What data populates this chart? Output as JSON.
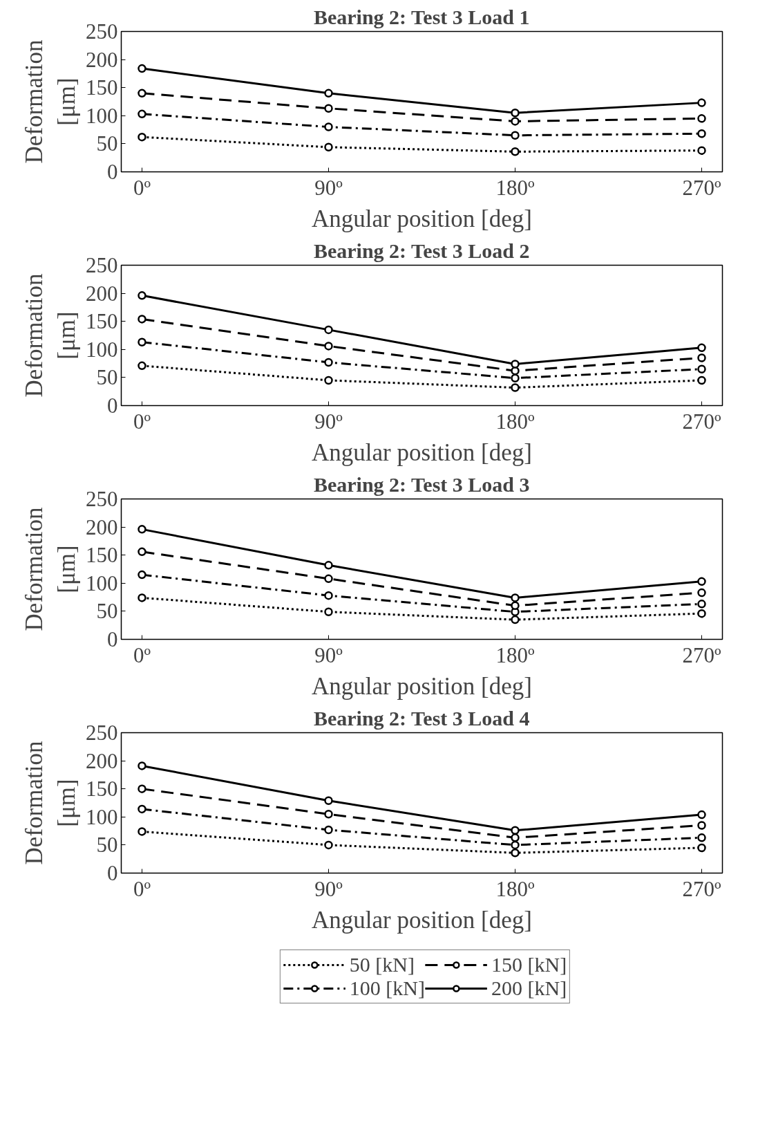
{
  "chart_data": [
    {
      "type": "line",
      "title": "Bearing 2: Test 3 Load 1",
      "xlabel": "Angular position [deg]",
      "ylabel": "Deformation [μm]",
      "x": [
        0,
        90,
        180,
        270
      ],
      "xlim": [
        -10,
        280
      ],
      "ylim": [
        0,
        250
      ],
      "xticks": [
        {
          "value": 0,
          "label": "0º"
        },
        {
          "value": 90,
          "label": "90º"
        },
        {
          "value": 180,
          "label": "180º"
        },
        {
          "value": 270,
          "label": "270º"
        }
      ],
      "yticks": [
        0,
        50,
        100,
        150,
        200,
        250
      ],
      "grid": false,
      "marker": "circle",
      "legend": false,
      "series": [
        {
          "color": "#000000",
          "line_style": "dotted",
          "values": [
            62,
            44,
            36,
            38
          ]
        },
        {
          "color": "#000000",
          "line_style": "dashdot",
          "values": [
            103,
            80,
            65,
            68
          ]
        },
        {
          "color": "#000000",
          "line_style": "dashed",
          "values": [
            140,
            113,
            90,
            95
          ]
        },
        {
          "color": "#000000",
          "line_style": "solid",
          "values": [
            184,
            140,
            105,
            123
          ]
        }
      ]
    },
    {
      "type": "line",
      "title": "Bearing 2: Test 3 Load 2",
      "xlabel": "Angular position [deg]",
      "ylabel": "Deformation [μm]",
      "x": [
        0,
        90,
        180,
        270
      ],
      "xlim": [
        -10,
        280
      ],
      "ylim": [
        0,
        250
      ],
      "xticks": [
        {
          "value": 0,
          "label": "0º"
        },
        {
          "value": 90,
          "label": "90º"
        },
        {
          "value": 180,
          "label": "180º"
        },
        {
          "value": 270,
          "label": "270º"
        }
      ],
      "yticks": [
        0,
        50,
        100,
        150,
        200,
        250
      ],
      "grid": false,
      "marker": "circle",
      "legend": false,
      "series": [
        {
          "color": "#000000",
          "line_style": "dotted",
          "values": [
            71,
            45,
            32,
            45
          ]
        },
        {
          "color": "#000000",
          "line_style": "dashdot",
          "values": [
            113,
            77,
            49,
            65
          ]
        },
        {
          "color": "#000000",
          "line_style": "dashed",
          "values": [
            154,
            106,
            62,
            85
          ]
        },
        {
          "color": "#000000",
          "line_style": "solid",
          "values": [
            196,
            135,
            74,
            103
          ]
        }
      ]
    },
    {
      "type": "line",
      "title": "Bearing 2: Test 3 Load 3",
      "xlabel": "Angular position [deg]",
      "ylabel": "Deformation [μm]",
      "x": [
        0,
        90,
        180,
        270
      ],
      "xlim": [
        -10,
        280
      ],
      "ylim": [
        0,
        250
      ],
      "xticks": [
        {
          "value": 0,
          "label": "0º"
        },
        {
          "value": 90,
          "label": "90º"
        },
        {
          "value": 180,
          "label": "180º"
        },
        {
          "value": 270,
          "label": "270º"
        }
      ],
      "yticks": [
        0,
        50,
        100,
        150,
        200,
        250
      ],
      "grid": false,
      "marker": "circle",
      "legend": false,
      "series": [
        {
          "color": "#000000",
          "line_style": "dotted",
          "values": [
            74,
            49,
            35,
            46
          ]
        },
        {
          "color": "#000000",
          "line_style": "dashdot",
          "values": [
            115,
            78,
            49,
            63
          ]
        },
        {
          "color": "#000000",
          "line_style": "dashed",
          "values": [
            156,
            108,
            60,
            83
          ]
        },
        {
          "color": "#000000",
          "line_style": "solid",
          "values": [
            196,
            132,
            74,
            103
          ]
        }
      ]
    },
    {
      "type": "line",
      "title": "Bearing 2: Test 3 Load 4",
      "xlabel": "Angular position [deg]",
      "ylabel": "Deformation [μm]",
      "x": [
        0,
        90,
        180,
        270
      ],
      "xlim": [
        -10,
        280
      ],
      "ylim": [
        0,
        250
      ],
      "xticks": [
        {
          "value": 0,
          "label": "0º"
        },
        {
          "value": 90,
          "label": "90º"
        },
        {
          "value": 180,
          "label": "180º"
        },
        {
          "value": 270,
          "label": "270º"
        }
      ],
      "yticks": [
        0,
        50,
        100,
        150,
        200,
        250
      ],
      "grid": false,
      "marker": "circle",
      "legend": "bottom",
      "series": [
        {
          "name": "50 [kN]",
          "color": "#000000",
          "line_style": "dotted",
          "values": [
            74,
            50,
            36,
            45
          ]
        },
        {
          "name": "100 [kN]",
          "color": "#000000",
          "line_style": "dashdot",
          "values": [
            114,
            77,
            50,
            63
          ]
        },
        {
          "name": "150 [kN]",
          "color": "#000000",
          "line_style": "dashed",
          "values": [
            150,
            105,
            63,
            85
          ]
        },
        {
          "name": "200 [kN]",
          "color": "#000000",
          "line_style": "solid",
          "values": [
            191,
            129,
            76,
            104
          ]
        }
      ]
    }
  ]
}
